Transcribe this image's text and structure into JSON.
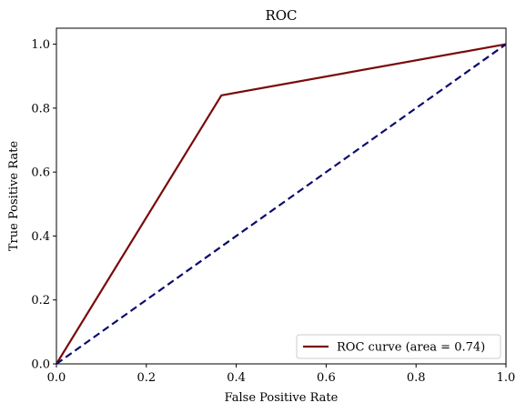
{
  "chart_data": {
    "type": "line",
    "title": "ROC",
    "xlabel": "False Positive Rate",
    "ylabel": "True Positive Rate",
    "xlim": [
      0.0,
      1.0
    ],
    "ylim": [
      0.0,
      1.05
    ],
    "x_ticks": [
      "0.0",
      "0.2",
      "0.4",
      "0.6",
      "0.8",
      "1.0"
    ],
    "y_ticks": [
      "0.0",
      "0.2",
      "0.4",
      "0.6",
      "0.8",
      "1.0"
    ],
    "grid": false,
    "legend_position": "lower right",
    "series": [
      {
        "name": "ROC curve (area = 0.74)",
        "color": "#7a0a0a",
        "style": "solid",
        "x": [
          0.0,
          0.367,
          1.0
        ],
        "y": [
          0.0,
          0.84,
          1.0
        ]
      },
      {
        "color": "#0b0b6e",
        "style": "dashed",
        "x": [
          0.0,
          1.0
        ],
        "y": [
          0.0,
          1.0
        ]
      }
    ]
  }
}
